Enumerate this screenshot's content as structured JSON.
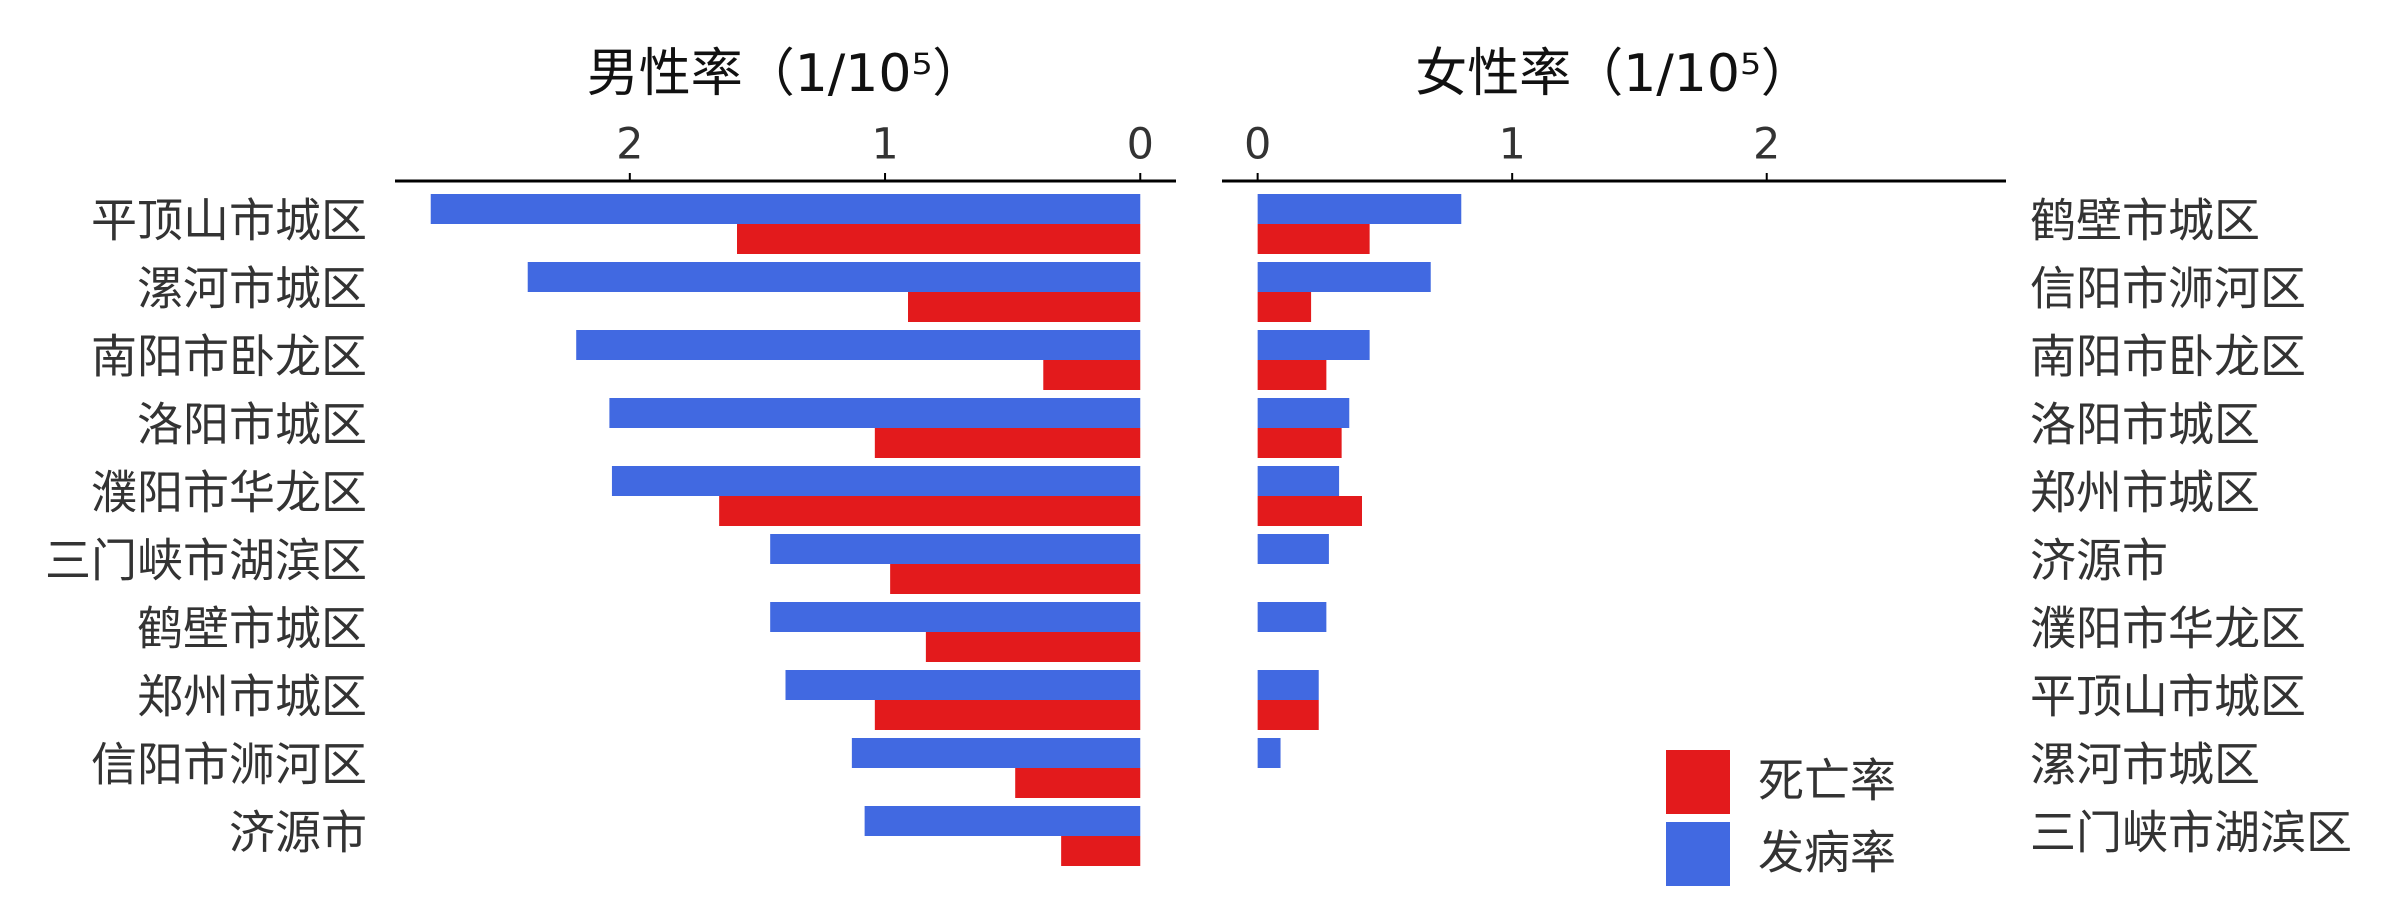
{
  "chart_data": [
    {
      "type": "bar",
      "orientation": "horizontal",
      "reverse_x": true,
      "title": "男性率（1/10⁵）",
      "categories": [
        "平顶山市城区",
        "漯河市城区",
        "南阳市卧龙区",
        "洛阳市城区",
        "濮阳市华龙区",
        "三门峡市湖滨区",
        "鹤壁市城区",
        "郑州市城区",
        "信阳市浉河区",
        "济源市"
      ],
      "series": [
        {
          "color": "#4169e1",
          "values": [
            2.78,
            2.4,
            2.21,
            2.08,
            2.07,
            1.45,
            1.45,
            1.39,
            1.13,
            1.08
          ]
        },
        {
          "color": "#e31a1c",
          "values": [
            1.58,
            0.91,
            0.38,
            1.04,
            1.65,
            0.98,
            0.84,
            1.04,
            0.49,
            0.31
          ]
        }
      ],
      "xlim": [
        -0.14,
        2.92
      ],
      "xticks": [
        0,
        1,
        2
      ]
    },
    {
      "type": "bar",
      "orientation": "horizontal",
      "reverse_x": false,
      "title": "女性率（1/10⁵）",
      "categories": [
        "鹤壁市城区",
        "信阳市浉河区",
        "南阳市卧龙区",
        "洛阳市城区",
        "郑州市城区",
        "济源市",
        "濮阳市华龙区",
        "平顶山市城区",
        "漯河市城区",
        "三门峡市湖滨区"
      ],
      "series": [
        {
          "name": "发病率",
          "color": "#4169e1",
          "values": [
            0.8,
            0.68,
            0.44,
            0.36,
            0.32,
            0.28,
            0.27,
            0.24,
            0.09,
            0
          ]
        },
        {
          "name": "死亡率",
          "color": "#e31a1c",
          "values": [
            0.44,
            0.21,
            0.27,
            0.33,
            0.41,
            0,
            0,
            0.24,
            0,
            0
          ]
        }
      ],
      "xlim": [
        -0.14,
        2.94
      ],
      "xticks": [
        0,
        1,
        2
      ],
      "legend": true
    }
  ]
}
